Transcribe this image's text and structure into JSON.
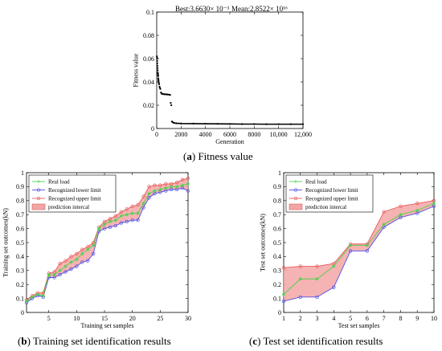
{
  "chart_data": [
    {
      "type": "scatter",
      "panel_label": "(a)",
      "caption": "Fitness value",
      "title_best": "Best:3.6630× 10⁻³",
      "title_mean": "Mean:2.8522× 10¹⁶",
      "xlabel": "Generation",
      "ylabel": "Fitness value",
      "xlim": [
        0,
        12000
      ],
      "ylim": [
        0,
        0.1
      ],
      "xticks": [
        "0",
        "2000",
        "4000",
        "6000",
        "8000",
        "10,000",
        "12,000"
      ],
      "xtick_values": [
        0,
        2000,
        4000,
        6000,
        8000,
        10000,
        12000
      ],
      "yticks": [
        "0",
        "0.02",
        "0.04",
        "0.06",
        "0.08",
        "0.1"
      ],
      "ytick_values": [
        0,
        0.02,
        0.04,
        0.06,
        0.08,
        0.1
      ],
      "grid": false,
      "series": [
        {
          "x": [
            10,
            20,
            30,
            40,
            50,
            60,
            70,
            80,
            90,
            100,
            110,
            120,
            130,
            140,
            150,
            160,
            180,
            200,
            230,
            260,
            300,
            350,
            400,
            450,
            500,
            600,
            700,
            800,
            900,
            1000,
            1100,
            1150,
            1200,
            1250,
            1300,
            1400,
            1600,
            2000,
            3000,
            4000,
            5000,
            6000,
            7000,
            8000,
            9000,
            10000,
            11000,
            12000
          ],
          "y": [
            0.062,
            0.061,
            0.06,
            0.058,
            0.056,
            0.054,
            0.052,
            0.05,
            0.048,
            0.047,
            0.046,
            0.045,
            0.043,
            0.042,
            0.041,
            0.04,
            0.039,
            0.038,
            0.036,
            0.035,
            0.034,
            0.031,
            0.03,
            0.0298,
            0.0296,
            0.0295,
            0.0294,
            0.0293,
            0.0292,
            0.0291,
            0.0289,
            0.022,
            0.02,
            0.006,
            0.0055,
            0.0048,
            0.0045,
            0.0043,
            0.0042,
            0.0041,
            0.004,
            0.0039,
            0.0038,
            0.0038,
            0.0037,
            0.0037,
            0.0037,
            0.0037
          ],
          "color": "#000000"
        }
      ]
    },
    {
      "type": "line",
      "panel_label": "(b)",
      "caption": "Training set identification results",
      "xlabel": "Training set samples",
      "ylabel": "Training set outcomes(kN)",
      "xlim": [
        1,
        30
      ],
      "ylim": [
        0,
        1
      ],
      "xticks": [
        "5",
        "10",
        "15",
        "20",
        "25",
        "30"
      ],
      "xtick_values": [
        5,
        10,
        15,
        20,
        25,
        30
      ],
      "yticks": [
        "0",
        "0.1",
        "0.2",
        "0.3",
        "0.4",
        "0.5",
        "0.6",
        "0.7",
        "0.8",
        "0.9",
        "1"
      ],
      "ytick_values": [
        0,
        0.1,
        0.2,
        0.3,
        0.4,
        0.5,
        0.6,
        0.7,
        0.8,
        0.9,
        1.0
      ],
      "grid": false,
      "legend_position": "top-left",
      "x": [
        1,
        2,
        3,
        4,
        5,
        6,
        7,
        8,
        9,
        10,
        11,
        12,
        13,
        14,
        15,
        16,
        17,
        18,
        19,
        20,
        21,
        22,
        23,
        24,
        25,
        26,
        27,
        28,
        29,
        30
      ],
      "series": [
        {
          "name": "Real load",
          "color": "#4cd24c",
          "values": [
            0.08,
            0.11,
            0.13,
            0.12,
            0.27,
            0.27,
            0.3,
            0.33,
            0.36,
            0.38,
            0.42,
            0.45,
            0.48,
            0.6,
            0.63,
            0.65,
            0.66,
            0.69,
            0.7,
            0.71,
            0.71,
            0.78,
            0.85,
            0.87,
            0.88,
            0.89,
            0.9,
            0.9,
            0.91,
            0.92
          ]
        },
        {
          "name": "Recognized lower limit",
          "color": "#5050e6",
          "values": [
            0.07,
            0.1,
            0.12,
            0.11,
            0.25,
            0.25,
            0.27,
            0.29,
            0.31,
            0.33,
            0.36,
            0.37,
            0.42,
            0.58,
            0.6,
            0.61,
            0.62,
            0.64,
            0.65,
            0.66,
            0.66,
            0.75,
            0.82,
            0.85,
            0.86,
            0.87,
            0.88,
            0.88,
            0.89,
            0.87
          ]
        },
        {
          "name": "Recognized upper limit",
          "color": "#e85a5a",
          "values": [
            0.09,
            0.12,
            0.14,
            0.14,
            0.28,
            0.29,
            0.35,
            0.37,
            0.4,
            0.42,
            0.45,
            0.47,
            0.5,
            0.61,
            0.65,
            0.67,
            0.69,
            0.72,
            0.74,
            0.76,
            0.77,
            0.83,
            0.9,
            0.91,
            0.91,
            0.92,
            0.92,
            0.93,
            0.95,
            0.96
          ]
        }
      ],
      "band": {
        "name": "prediction intercal",
        "fill": "#f4a6a6",
        "edge": "#d06060"
      }
    },
    {
      "type": "line",
      "panel_label": "(c)",
      "caption": "Test set identification results",
      "xlabel": "Test set samples",
      "ylabel": "Test set outcomes(kN)",
      "xlim": [
        1,
        10
      ],
      "ylim": [
        0,
        1
      ],
      "xticks": [
        "1",
        "2",
        "3",
        "4",
        "5",
        "6",
        "7",
        "8",
        "9",
        "10"
      ],
      "xtick_values": [
        1,
        2,
        3,
        4,
        5,
        6,
        7,
        8,
        9,
        10
      ],
      "yticks": [
        "0",
        "0.1",
        "0.2",
        "0.3",
        "0.4",
        "0.5",
        "0.6",
        "0.7",
        "0.8",
        "0.9",
        "1"
      ],
      "ytick_values": [
        0,
        0.1,
        0.2,
        0.3,
        0.4,
        0.5,
        0.6,
        0.7,
        0.8,
        0.9,
        1.0
      ],
      "grid": false,
      "legend_position": "top-left",
      "x": [
        1,
        2,
        3,
        4,
        5,
        6,
        7,
        8,
        9,
        10
      ],
      "series": [
        {
          "name": "Real load",
          "color": "#4cd24c",
          "values": [
            0.13,
            0.24,
            0.24,
            0.33,
            0.48,
            0.48,
            0.63,
            0.7,
            0.73,
            0.78
          ]
        },
        {
          "name": "Recognized lower limit",
          "color": "#5050e6",
          "values": [
            0.08,
            0.11,
            0.11,
            0.18,
            0.44,
            0.44,
            0.61,
            0.68,
            0.71,
            0.76
          ]
        },
        {
          "name": "Recognized upper limit",
          "color": "#e85a5a",
          "values": [
            0.32,
            0.33,
            0.33,
            0.35,
            0.49,
            0.49,
            0.72,
            0.76,
            0.78,
            0.8
          ]
        }
      ],
      "band": {
        "name": "prediction intercal",
        "fill": "#f4a6a6",
        "edge": "#d06060"
      }
    }
  ]
}
